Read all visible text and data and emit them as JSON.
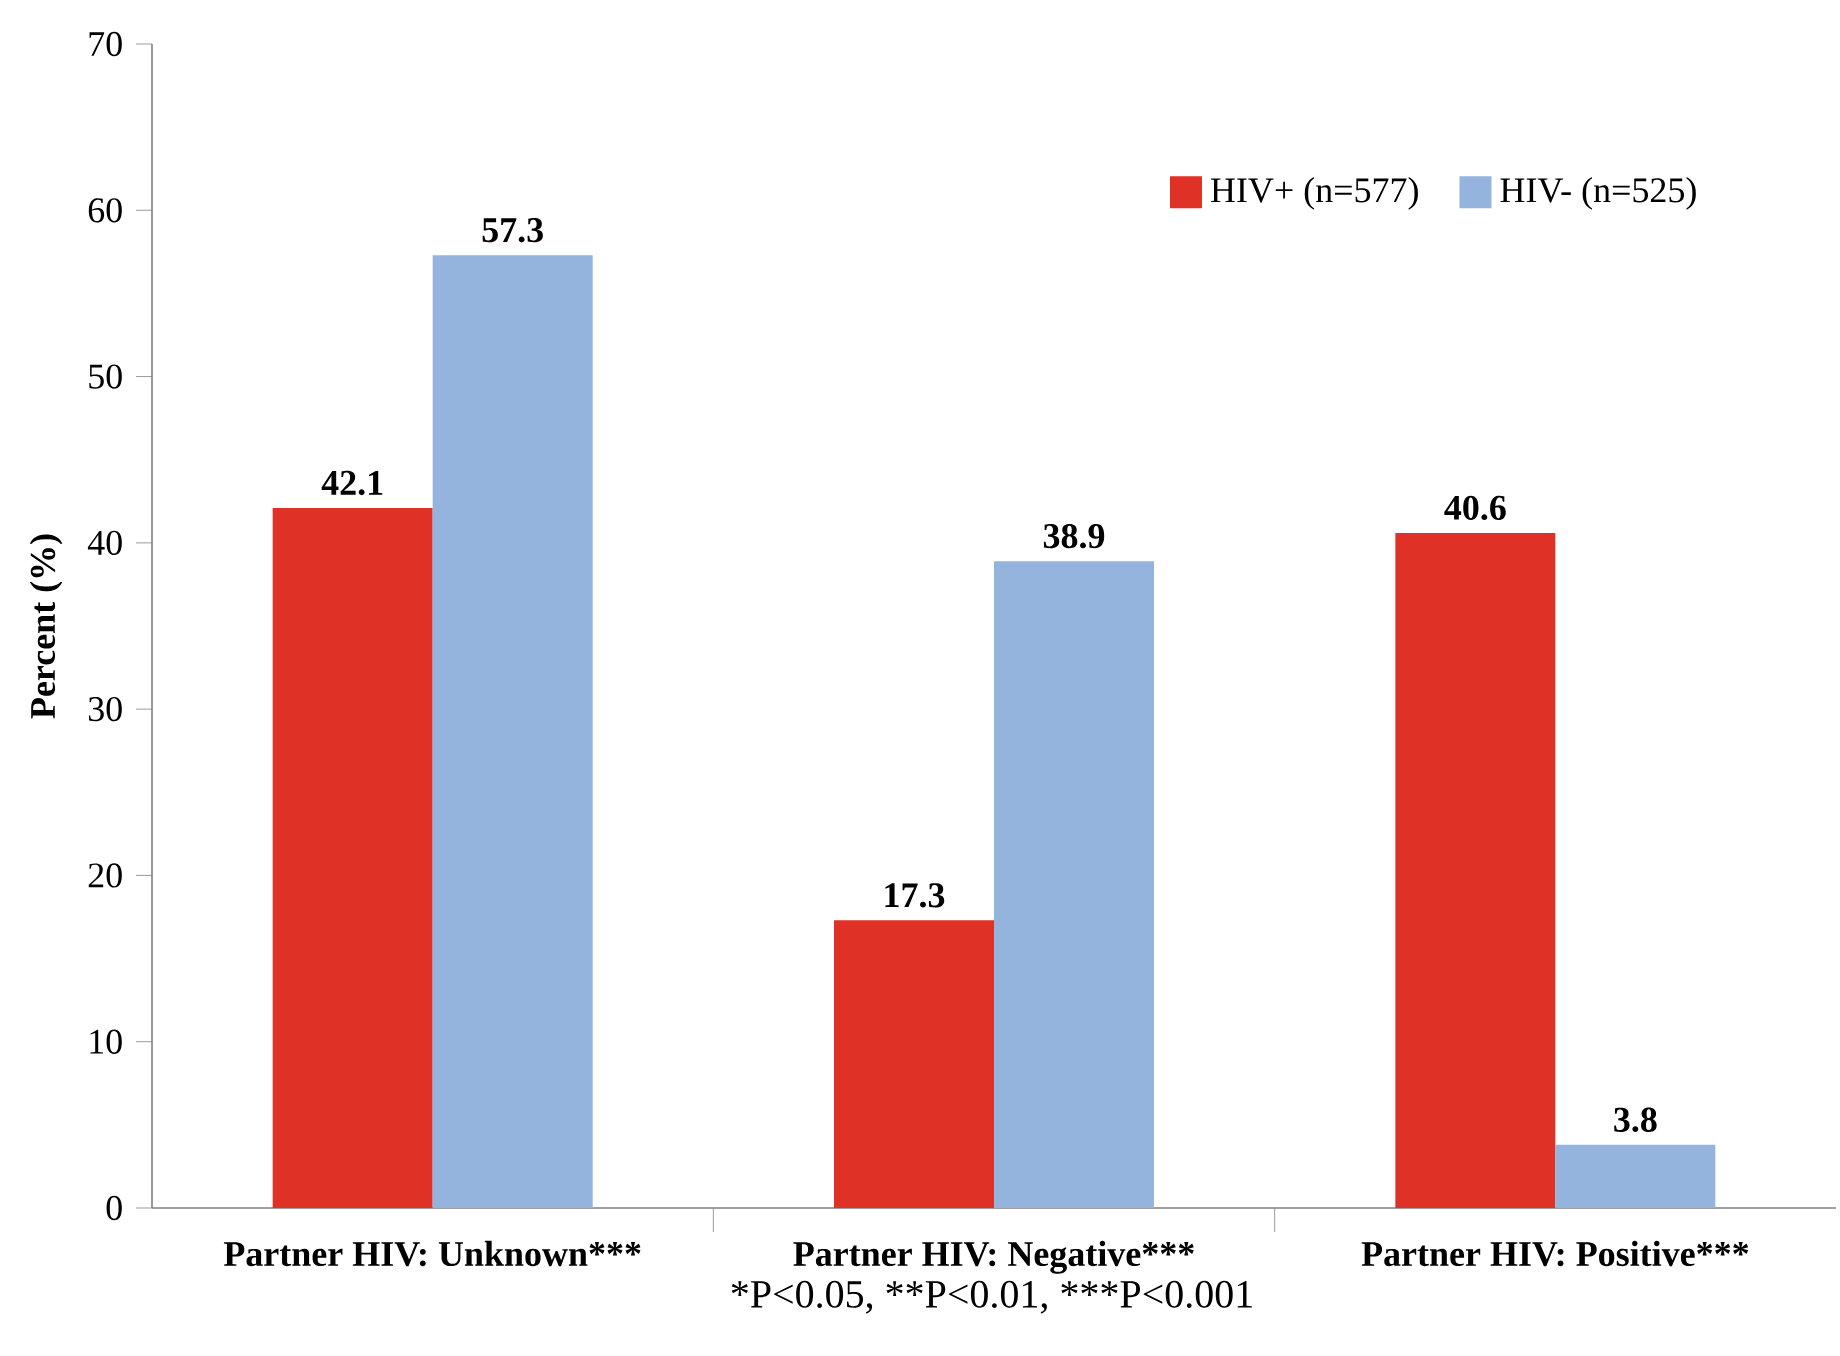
{
  "chart_data": {
    "type": "bar",
    "ylabel": "Percent (%)",
    "categories": [
      "Partner HIV: Unknown***",
      "Partner HIV: Negative***",
      "Partner HIV: Positive***"
    ],
    "series": [
      {
        "name": "HIV+ (n=577)",
        "color": "#e03127",
        "values": [
          42.1,
          17.3,
          40.6
        ]
      },
      {
        "name": "HIV- (n=525)",
        "color": "#94b3dd",
        "values": [
          57.3,
          38.9,
          3.8
        ]
      }
    ],
    "ylim": [
      0,
      70
    ],
    "yticks": [
      0,
      10,
      20,
      30,
      40,
      50,
      60,
      70
    ],
    "data_labels": true,
    "legend": "top right",
    "grid": false,
    "annotations": [
      "*P<0.05,",
      "**P<0.01,",
      "***P<0.001"
    ]
  }
}
